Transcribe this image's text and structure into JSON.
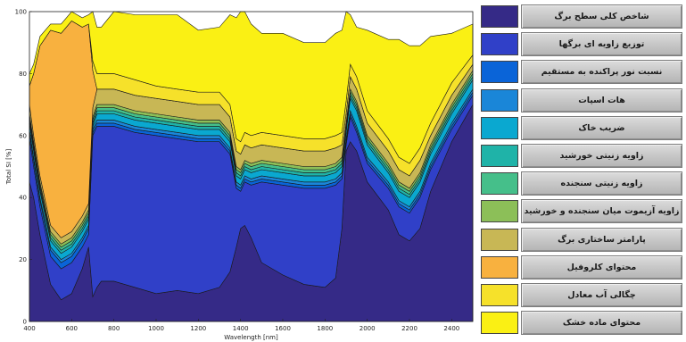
{
  "chart_data": {
    "type": "area",
    "stacked": true,
    "xlabel": "Wavelength [nm]",
    "ylabel": "Total SI [%]",
    "xlim": [
      400,
      2500
    ],
    "ylim": [
      0,
      100
    ],
    "grid": false,
    "legend_position": "right",
    "x": [
      400,
      420,
      450,
      500,
      550,
      600,
      650,
      680,
      700,
      720,
      740,
      800,
      900,
      1000,
      1100,
      1200,
      1300,
      1350,
      1380,
      1400,
      1420,
      1450,
      1500,
      1600,
      1700,
      1800,
      1850,
      1880,
      1900,
      1920,
      1950,
      2000,
      2100,
      2150,
      2200,
      2250,
      2300,
      2400,
      2500
    ],
    "series": [
      {
        "name": "شاخص کلی سطح برگ",
        "color": "#352a87",
        "values": [
          45,
          40,
          28,
          12,
          7,
          9,
          17,
          24,
          8,
          11,
          13,
          13,
          11,
          9,
          10,
          9,
          11,
          16,
          24,
          30,
          31,
          27,
          19,
          15,
          12,
          11,
          14,
          30,
          55,
          58,
          55,
          45,
          36,
          28,
          26,
          30,
          42,
          58,
          70
        ]
      },
      {
        "name": "توزیع زاویه ای برگها",
        "color": "#3040c8",
        "values": [
          14,
          10,
          9,
          9,
          10,
          10,
          7,
          4,
          52,
          52,
          50,
          50,
          50,
          51,
          49,
          49,
          47,
          38,
          19,
          12,
          14,
          17,
          26,
          29,
          31,
          32,
          30,
          16,
          2,
          8,
          6,
          6,
          7,
          9,
          9,
          10,
          7,
          4,
          3
        ]
      },
      {
        "name": "نسبت نور پراکنده به مستقیم",
        "color": "#0a64d8",
        "values": [
          2,
          2,
          2,
          2,
          2,
          2,
          2,
          2,
          1,
          1,
          1,
          1,
          1,
          1,
          1,
          1,
          1,
          1,
          1,
          1,
          1,
          1,
          1,
          1,
          1,
          1,
          1,
          1,
          1,
          1,
          1,
          1,
          1,
          1,
          1,
          1,
          1,
          1,
          1
        ]
      },
      {
        "name": "هات اسپات",
        "color": "#1a86d8",
        "values": [
          1,
          1,
          1,
          1,
          1,
          1,
          1,
          1,
          1,
          1,
          1,
          1,
          1,
          1,
          1,
          1,
          1,
          1,
          1,
          1,
          1,
          1,
          1,
          1,
          1,
          1,
          1,
          1,
          1,
          1,
          1,
          1,
          1,
          1,
          1,
          1,
          1,
          1,
          1
        ]
      },
      {
        "name": "ضریب خاک",
        "color": "#0aa8d0",
        "values": [
          2,
          2,
          2,
          2,
          2,
          2,
          2,
          2,
          1,
          2,
          2,
          2,
          2,
          2,
          2,
          2,
          2,
          2,
          2,
          2,
          2,
          2,
          2,
          2,
          2,
          2,
          2,
          2,
          2,
          4,
          5,
          4,
          3,
          3,
          3,
          3,
          3,
          3,
          3
        ]
      },
      {
        "name": "زاویه زنیتی خورشید",
        "color": "#1fb3a8",
        "values": [
          1,
          1,
          1,
          1,
          1,
          1,
          1,
          1,
          1,
          1,
          1,
          1,
          1,
          1,
          1,
          1,
          1,
          1,
          1,
          1,
          1,
          1,
          1,
          1,
          1,
          1,
          1,
          1,
          1,
          1,
          1,
          1,
          1,
          1,
          1,
          1,
          1,
          1,
          1
        ]
      },
      {
        "name": "زاویه زنیتی سنجنده",
        "color": "#45bf8a",
        "values": [
          1,
          1,
          1,
          1,
          1,
          1,
          1,
          1,
          1,
          1,
          1,
          1,
          1,
          1,
          1,
          1,
          1,
          1,
          1,
          1,
          1,
          1,
          1,
          1,
          1,
          1,
          1,
          1,
          1,
          1,
          1,
          1,
          1,
          1,
          1,
          1,
          1,
          1,
          1
        ]
      },
      {
        "name": "زاویه آزیموت میان سنجنده و خورشید",
        "color": "#8cbf58",
        "values": [
          1,
          1,
          1,
          1,
          1,
          1,
          1,
          1,
          1,
          1,
          1,
          1,
          1,
          1,
          1,
          1,
          1,
          1,
          1,
          1,
          1,
          1,
          1,
          1,
          1,
          1,
          1,
          1,
          1,
          1,
          1,
          1,
          1,
          1,
          1,
          1,
          1,
          1,
          1
        ]
      },
      {
        "name": "پارامتر ساختاری برگ",
        "color": "#c8b755",
        "values": [
          3,
          2,
          2,
          2,
          2,
          2,
          2,
          2,
          3,
          5,
          5,
          5,
          5,
          5,
          5,
          5,
          5,
          5,
          5,
          5,
          5,
          5,
          5,
          5,
          5,
          5,
          5,
          4,
          3,
          4,
          4,
          4,
          4,
          4,
          4,
          4,
          3,
          3,
          2
        ]
      },
      {
        "name": "محتوای کلروفیل",
        "color": "#f8b13f",
        "values": [
          6,
          20,
          42,
          63,
          66,
          68,
          61,
          58,
          12,
          0,
          0,
          0,
          0,
          0,
          0,
          0,
          0,
          0,
          0,
          0,
          0,
          0,
          0,
          0,
          0,
          0,
          0,
          0,
          0,
          0,
          0,
          0,
          0,
          0,
          0,
          0,
          0,
          0,
          0
        ]
      },
      {
        "name": "چگالی آب معادل",
        "color": "#f6e12a",
        "values": [
          0,
          0,
          0,
          0,
          0,
          0,
          0,
          0,
          3,
          5,
          5,
          5,
          5,
          4,
          4,
          4,
          4,
          4,
          4,
          4,
          4,
          4,
          4,
          4,
          4,
          4,
          4,
          4,
          4,
          4,
          4,
          4,
          4,
          4,
          4,
          4,
          4,
          4,
          3
        ]
      },
      {
        "name": "محتوای ماده خشک",
        "color": "#faf014",
        "values": [
          4,
          3,
          3,
          2,
          3,
          3,
          3,
          3,
          16,
          15,
          15,
          20,
          21,
          23,
          24,
          20,
          21,
          29,
          39,
          44,
          39,
          36,
          32,
          33,
          31,
          31,
          33,
          33,
          29,
          16,
          16,
          26,
          32,
          38,
          38,
          33,
          28,
          16,
          10
        ]
      }
    ],
    "x_ticks": [
      400,
      600,
      800,
      1000,
      1200,
      1400,
      1600,
      1800,
      2000,
      2200,
      2400
    ],
    "y_ticks": [
      0,
      20,
      40,
      60,
      80,
      100
    ]
  }
}
